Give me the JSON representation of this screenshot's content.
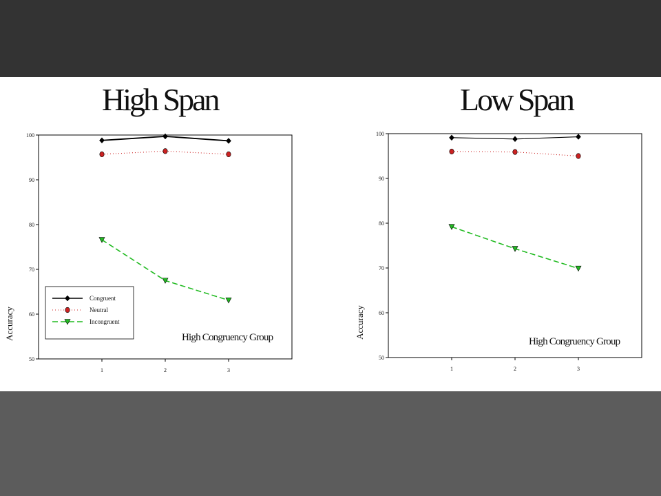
{
  "chart_data": [
    {
      "type": "line",
      "title": "High Span",
      "ylabel": "Accuracy",
      "xlabel": "",
      "annotation": "High Congruency Group",
      "x": [
        1,
        2,
        3
      ],
      "xlim": [
        0,
        4
      ],
      "ylim": [
        50,
        100
      ],
      "yticks": [
        50,
        60,
        70,
        80,
        90,
        100
      ],
      "grid": false,
      "legend": "bottom-left",
      "series": [
        {
          "name": "Congruent",
          "values": [
            98.8,
            99.7,
            98.7
          ],
          "color": "#000000",
          "marker": "diamond",
          "dash": ""
        },
        {
          "name": "Neutral",
          "values": [
            95.7,
            96.4,
            95.7
          ],
          "color": "#cc2222",
          "marker": "hexagon",
          "dash": "1,3"
        },
        {
          "name": "Incongruent",
          "values": [
            76.6,
            67.5,
            63.1
          ],
          "color": "#22bb22",
          "marker": "triangle-down",
          "dash": "8,4"
        }
      ]
    },
    {
      "type": "line",
      "title": "Low Span",
      "ylabel": "Accuracy",
      "xlabel": "",
      "annotation": "High Congruency Group",
      "x": [
        1,
        2,
        3
      ],
      "xlim": [
        0,
        4
      ],
      "ylim": [
        50,
        100
      ],
      "yticks": [
        50,
        60,
        70,
        80,
        90,
        100
      ],
      "grid": false,
      "legend": "none",
      "series": [
        {
          "name": "",
          "values": [
            99.1,
            98.8,
            99.3
          ],
          "color": "#000000",
          "marker": "diamond",
          "dash": ""
        },
        {
          "name": "",
          "values": [
            96.0,
            95.9,
            95.0
          ],
          "color": "#cc2222",
          "marker": "hexagon",
          "dash": "1,3"
        },
        {
          "name": "",
          "values": [
            79.2,
            74.3,
            69.9
          ],
          "color": "#22bb22",
          "marker": "triangle-down",
          "dash": "8,4"
        }
      ]
    }
  ]
}
